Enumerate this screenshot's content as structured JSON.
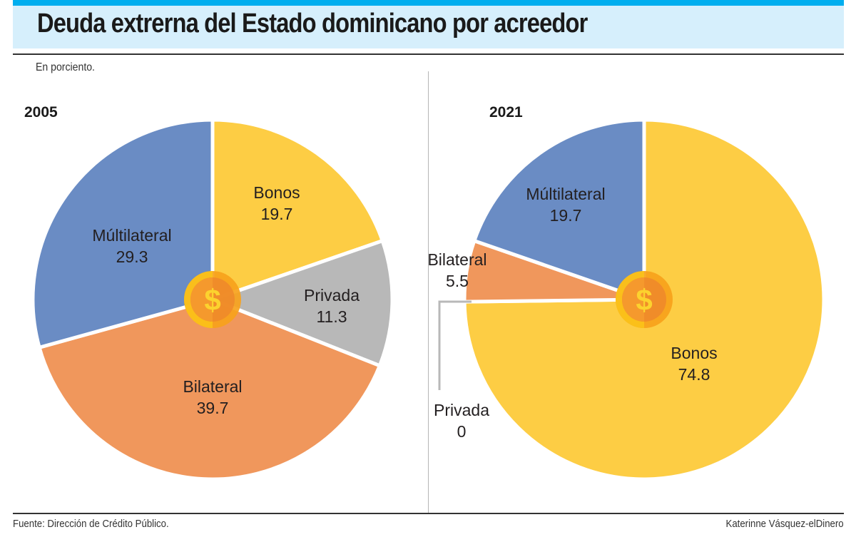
{
  "header": {
    "title": "Deuda extrerna del Estado dominicano por acreedor",
    "subtitle": "En porciento."
  },
  "footer": {
    "source": "Fuente: Dirección de Crédito Público.",
    "credit": "Katerinne Vásquez-elDinero"
  },
  "colors": {
    "Bonos": "#fdcd44",
    "Privada": "#b8b8b8",
    "Bilateral": "#f0975c",
    "Múltilateral": "#6a8cc4",
    "accent_bar": "#00aeef",
    "title_bg": "#d6effc"
  },
  "icons": {
    "center": "dollar-coin-icon"
  },
  "chart_data": [
    {
      "type": "pie",
      "title": "2005",
      "unit": "percent",
      "start": "12 o'clock, clockwise",
      "categories": [
        "Bonos",
        "Privada",
        "Bilateral",
        "Múltilateral"
      ],
      "values": [
        19.7,
        11.3,
        39.7,
        29.3
      ],
      "labels": [
        "19.7",
        "11.3",
        "39.7",
        "29.3"
      ]
    },
    {
      "type": "pie",
      "title": "2021",
      "unit": "percent",
      "start": "12 o'clock, clockwise",
      "categories": [
        "Bonos",
        "Privada",
        "Bilateral",
        "Múltilateral"
      ],
      "values": [
        74.8,
        0,
        5.5,
        19.7
      ],
      "labels": [
        "74.8",
        "0",
        "5.5",
        "19.7"
      ]
    }
  ]
}
